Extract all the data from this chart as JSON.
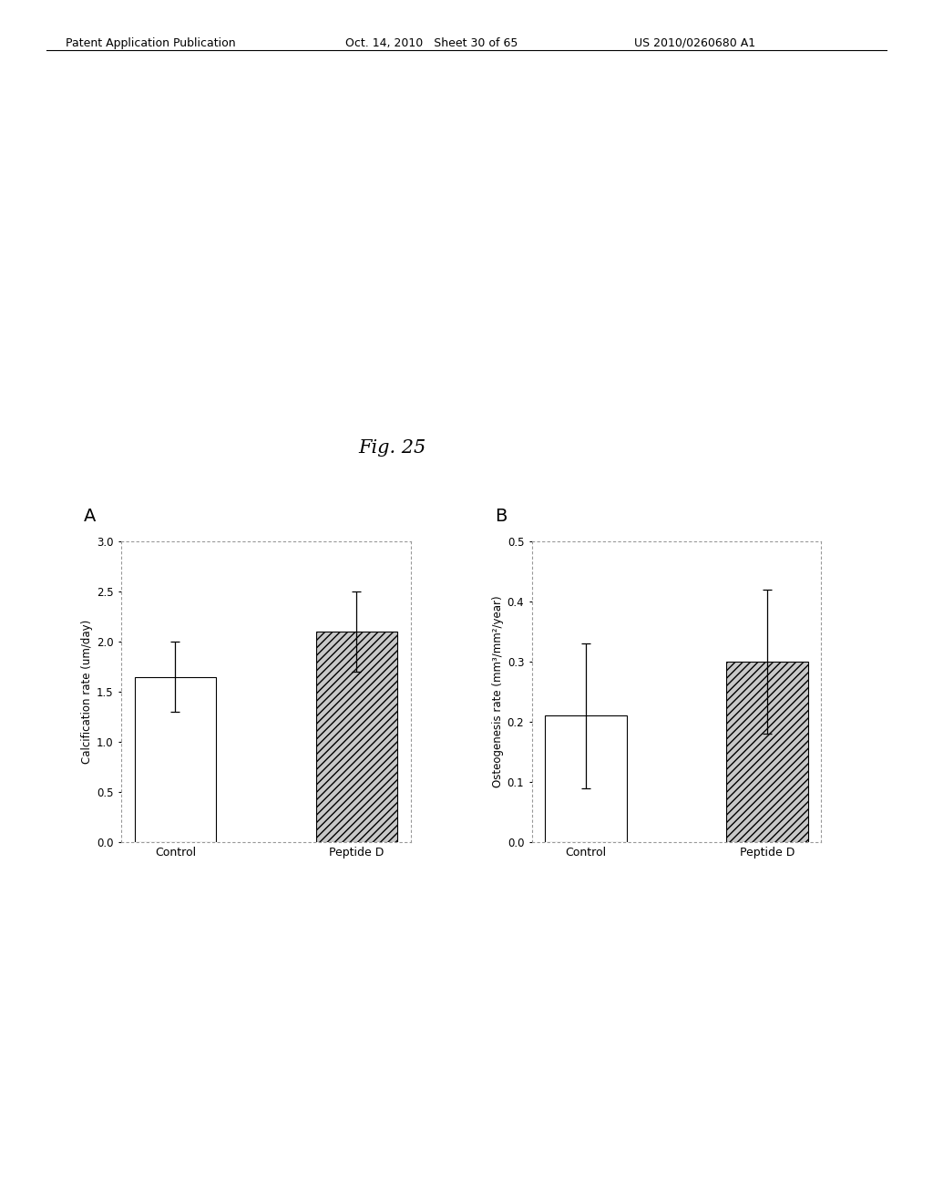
{
  "fig_label": "Fig. 25",
  "panel_A": {
    "label": "A",
    "ylabel": "Calcification rate (um/day)",
    "categories": [
      "Control",
      "Peptide D"
    ],
    "values": [
      1.65,
      2.1
    ],
    "errors": [
      0.35,
      0.4
    ],
    "ylim": [
      0.0,
      3.0
    ],
    "yticks": [
      0.0,
      0.5,
      1.0,
      1.5,
      2.0,
      2.5,
      3.0
    ]
  },
  "panel_B": {
    "label": "B",
    "ylabel": "Osteogenesis rate (mm³/mm²/year)",
    "categories": [
      "Control",
      "Peptide D"
    ],
    "values": [
      0.21,
      0.3
    ],
    "errors": [
      0.12,
      0.12
    ],
    "ylim": [
      0.0,
      0.5
    ],
    "yticks": [
      0.0,
      0.1,
      0.2,
      0.3,
      0.4,
      0.5
    ]
  },
  "header_left": "Patent Application Publication",
  "header_mid": "Oct. 14, 2010   Sheet 30 of 65",
  "header_right": "US 2010/0260680 A1",
  "bar_colors": [
    "white",
    "#c8c8c8"
  ],
  "bar_hatch": [
    null,
    "////"
  ],
  "background_color": "#ffffff",
  "dotted_box_color": "#999999"
}
